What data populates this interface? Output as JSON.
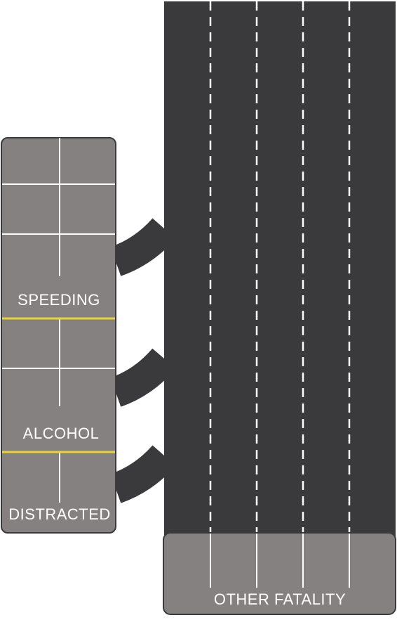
{
  "labels": {
    "speeding": "SPEEDING",
    "alcohol": "ALCOHOL",
    "distracted": "DISTRACTED",
    "other": "OTHER FATALITY"
  },
  "colors": {
    "road": "#3a3a3d",
    "block": "#858180",
    "block_border": "#3a3a3d",
    "line": "#ffffff",
    "divider": "#e8d531",
    "text": "#ffffff"
  }
}
